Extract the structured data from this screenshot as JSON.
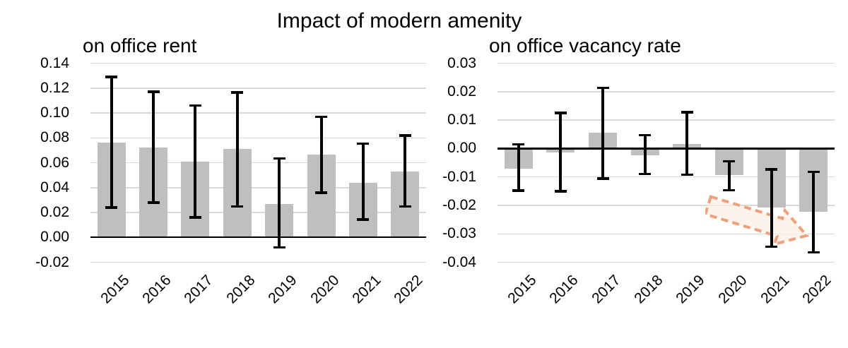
{
  "page": {
    "title": "Impact of modern amenity"
  },
  "colors": {
    "bar": "#BFBFBF",
    "gridline": "#D9D9D9",
    "axis": "#000000",
    "error_bar": "#000000",
    "text": "#000000",
    "arrow_stroke": "#EFA079",
    "arrow_fill": "#FBEEE4"
  },
  "chart_data": [
    {
      "type": "bar",
      "subtitle": "on office rent",
      "categories": [
        "2015",
        "2016",
        "2017",
        "2018",
        "2019",
        "2020",
        "2021",
        "2022"
      ],
      "values": [
        0.076,
        0.0725,
        0.061,
        0.071,
        0.027,
        0.0665,
        0.044,
        0.053
      ],
      "error_low": [
        0.024,
        0.028,
        0.016,
        0.025,
        -0.008,
        0.036,
        0.0145,
        0.025
      ],
      "error_high": [
        0.129,
        0.117,
        0.106,
        0.1165,
        0.0635,
        0.097,
        0.0755,
        0.082
      ],
      "ylim": [
        -0.02,
        0.14
      ],
      "ytick_labels": [
        "0.14",
        "0.12",
        "0.10",
        "0.08",
        "0.06",
        "0.04",
        "0.02",
        "0.00",
        "-0.02"
      ],
      "grid": true,
      "legend": "none",
      "xlabel": "",
      "ylabel": ""
    },
    {
      "type": "bar",
      "subtitle": "on office vacancy rate",
      "categories": [
        "2015",
        "2016",
        "2017",
        "2018",
        "2019",
        "2020",
        "2021",
        "2022"
      ],
      "values": [
        -0.007,
        -0.0015,
        0.0055,
        -0.0025,
        0.0015,
        -0.0093,
        -0.0207,
        -0.0222
      ],
      "error_low": [
        -0.0148,
        -0.015,
        -0.0105,
        -0.009,
        -0.0092,
        -0.0146,
        -0.0345,
        -0.0365
      ],
      "error_high": [
        0.0015,
        0.0125,
        0.0213,
        0.0047,
        0.0128,
        -0.0045,
        -0.0073,
        -0.0082
      ],
      "ylim": [
        -0.04,
        0.03
      ],
      "ytick_labels": [
        "0.03",
        "0.02",
        "0.01",
        "0.00",
        "-0.01",
        "-0.02",
        "-0.03",
        "-0.04"
      ],
      "grid": true,
      "legend": "none",
      "xlabel": "",
      "ylabel": "",
      "annotation": {
        "icon": "dashed-arrow-down-right",
        "meaning": "declining trend 2020-2022"
      }
    }
  ]
}
